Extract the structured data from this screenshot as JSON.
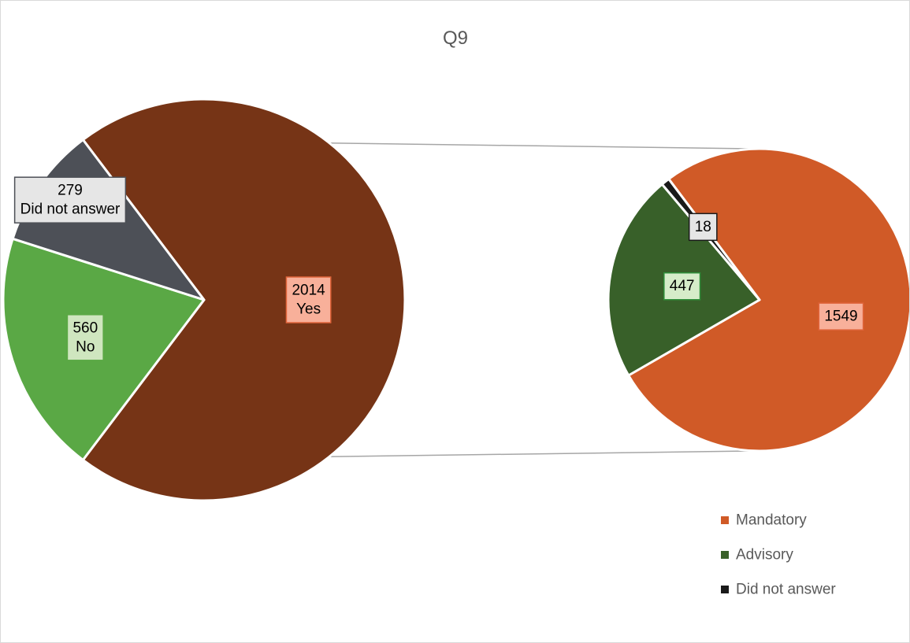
{
  "chart_data": {
    "type": "pie",
    "title": "Q9",
    "main_pie": {
      "slices": [
        {
          "label": "Yes",
          "value": 2014,
          "color": "#763416",
          "label_bg": "#f8b09a",
          "label_border": "#e0643a"
        },
        {
          "label": "No",
          "value": 560,
          "color": "#5aa845",
          "label_bg": "#cfe6bf",
          "label_border": "#5aa845"
        },
        {
          "label": "Did not answer",
          "value": 279,
          "color": "#4d5057",
          "label_bg": "#e6e6e6",
          "label_border": "#4d5057"
        }
      ]
    },
    "secondary_pie": {
      "parent_slice": "Yes",
      "slices": [
        {
          "label": "Mandatory",
          "value": 1549,
          "color": "#d05a27",
          "label_bg": "#f8b09a",
          "label_border": "#e0643a"
        },
        {
          "label": "Advisory",
          "value": 447,
          "color": "#386029",
          "label_bg": "#d6ecc9",
          "label_border": "#2f8f3a"
        },
        {
          "label": "Did not answer",
          "value": 18,
          "color": "#1a1a1a",
          "label_bg": "#e6e6e6",
          "label_border": "#1a1a1a"
        }
      ]
    },
    "legend": {
      "position": "bottom-right",
      "entries": [
        {
          "label": "Mandatory",
          "color": "#d05a27"
        },
        {
          "label": "Advisory",
          "color": "#386029"
        },
        {
          "label": "Did not answer",
          "color": "#1a1a1a"
        }
      ]
    }
  }
}
